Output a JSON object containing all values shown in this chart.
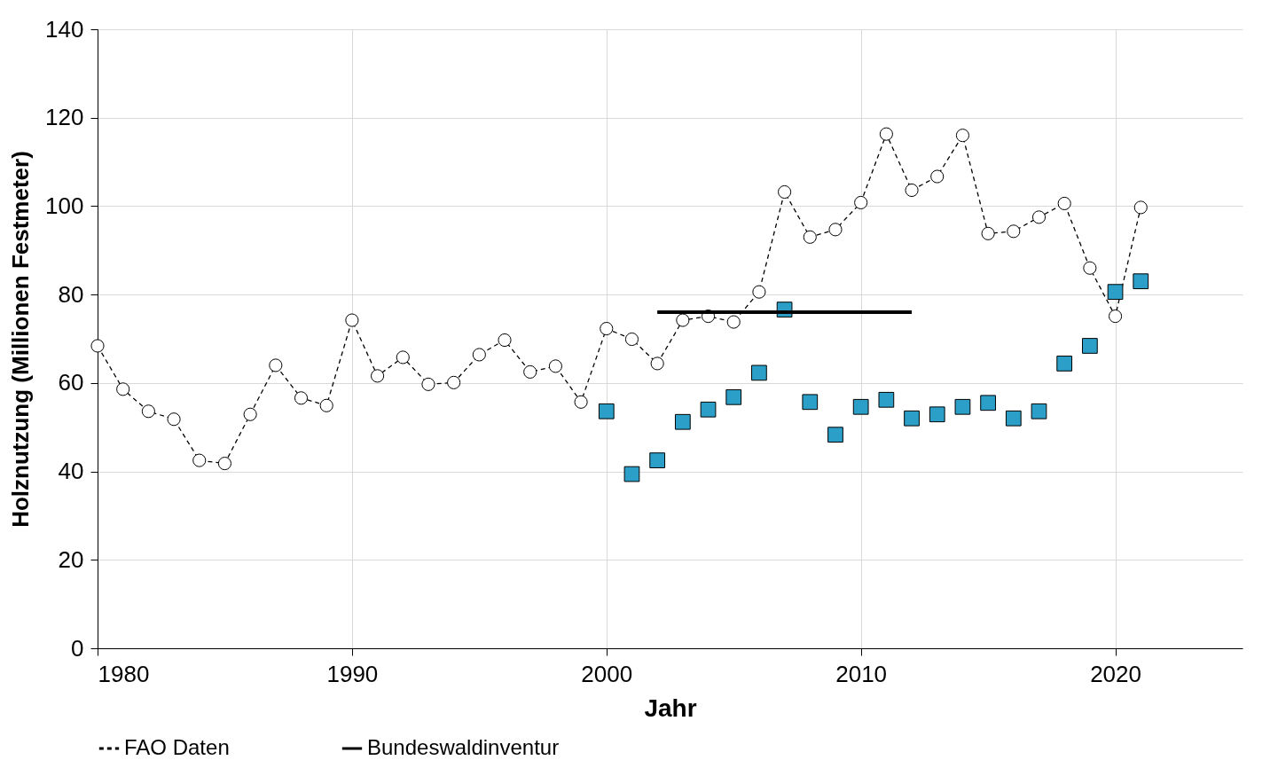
{
  "chart_data": {
    "type": "line",
    "xlabel": "Jahr",
    "ylabel": "Holznutzung (Millionen Festmeter)",
    "xlim": [
      1980,
      2025
    ],
    "xticks": [
      1980,
      1990,
      2000,
      2010,
      2020
    ],
    "ylim": [
      0,
      140
    ],
    "yticks": [
      0,
      20,
      40,
      60,
      80,
      100,
      120,
      140
    ],
    "grid": true,
    "legend": "bottom",
    "series": [
      {
        "name": "FAO Daten",
        "color": "#000000",
        "marker": "circle",
        "line_style": "dashed",
        "x": [
          1980,
          1981,
          1982,
          1983,
          1984,
          1985,
          1986,
          1987,
          1988,
          1989,
          1990,
          1991,
          1992,
          1993,
          1994,
          1995,
          1996,
          1997,
          1998,
          1999,
          2000,
          2001,
          2002,
          2003,
          2004,
          2005,
          2006,
          2007,
          2008,
          2009,
          2010,
          2011,
          2012,
          2013,
          2014,
          2015,
          2016,
          2017,
          2018,
          2019,
          2020,
          2021
        ],
        "values": [
          68.4,
          58.6,
          53.6,
          51.8,
          42.5,
          41.8,
          52.9,
          64,
          56.6,
          54.9,
          74.2,
          61.6,
          65.8,
          59.7,
          60.1,
          66.4,
          69.7,
          62.5,
          63.8,
          55.7,
          72.3,
          69.9,
          64.4,
          74.2,
          75.1,
          73.8,
          80.6,
          103.2,
          93,
          94.7,
          100.8,
          116.3,
          103.6,
          106.7,
          116,
          93.8,
          94.3,
          97.5,
          100.6,
          86,
          75.1,
          99.7
        ]
      },
      {
        "type": "scatter",
        "color": "#2b9fc8",
        "marker": "square",
        "x": [
          2000,
          2001,
          2002,
          2003,
          2004,
          2005,
          2006,
          2007,
          2008,
          2009,
          2010,
          2011,
          2012,
          2013,
          2014,
          2015,
          2016,
          2017,
          2018,
          2019,
          2020,
          2021
        ],
        "values": [
          53.6,
          39.4,
          42.5,
          51.2,
          54,
          56.8,
          62.3,
          76.6,
          55.7,
          48.3,
          54.6,
          56.2,
          52,
          52.9,
          54.6,
          55.5,
          52,
          53.6,
          64.4,
          68.4,
          80.6,
          83
        ]
      },
      {
        "name": "Bundeswaldinventur",
        "color": "#000000",
        "line_style": "solid",
        "x": [
          2002,
          2012
        ],
        "values": [
          76,
          76
        ]
      }
    ]
  }
}
